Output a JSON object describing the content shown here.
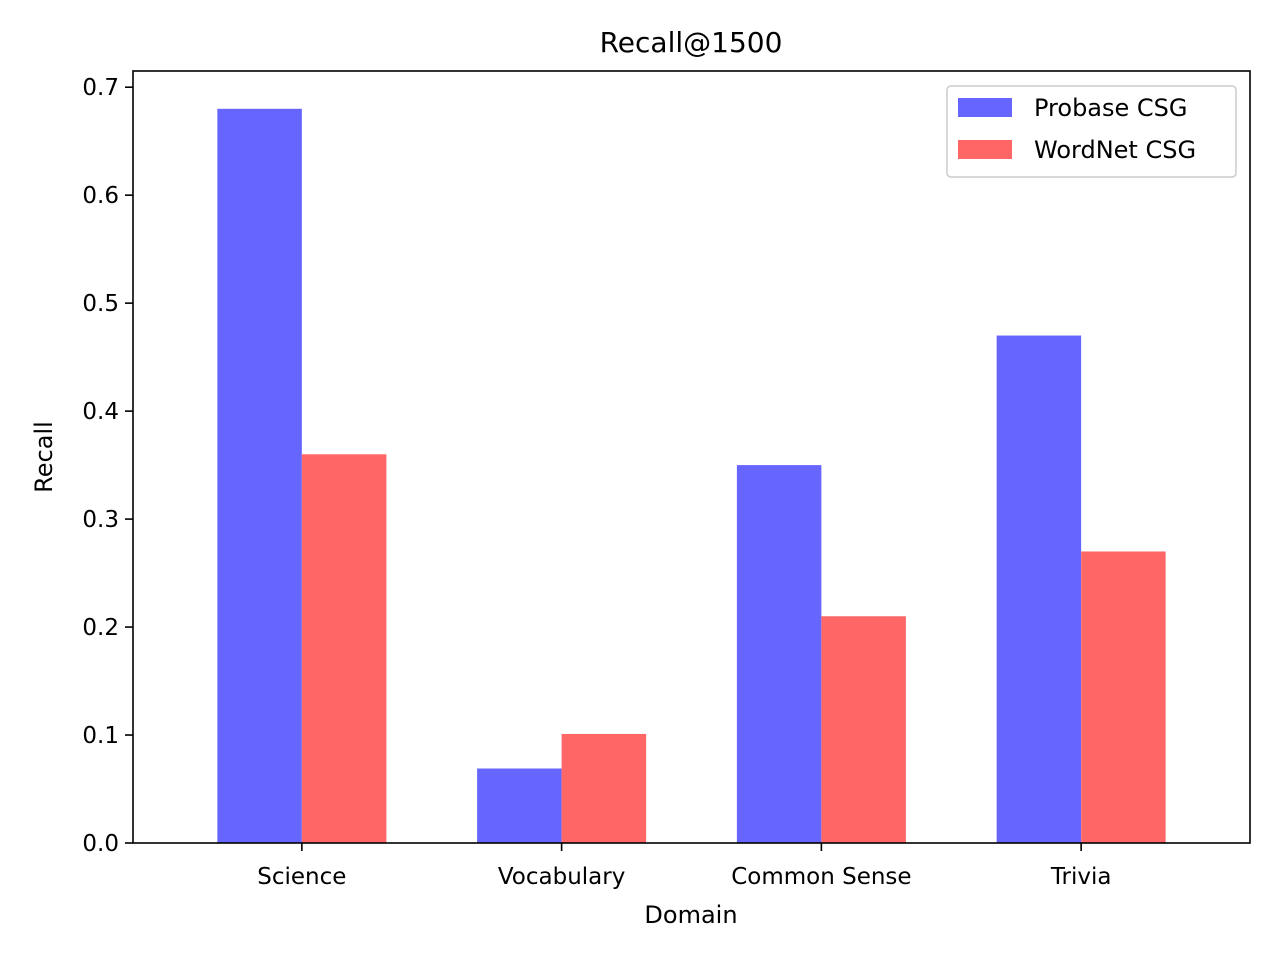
{
  "chart_data": {
    "type": "bar",
    "title": "Recall@1500",
    "xlabel": "Domain",
    "ylabel": "Recall",
    "categories": [
      "Science",
      "Vocabulary",
      "Common Sense",
      "Trivia"
    ],
    "series": [
      {
        "name": "Probase CSG",
        "values": [
          0.68,
          0.069,
          0.35,
          0.47
        ],
        "color": "#6666ff"
      },
      {
        "name": "WordNet CSG",
        "values": [
          0.36,
          0.101,
          0.21,
          0.27
        ],
        "color": "#ff6666"
      }
    ],
    "ylim": [
      0,
      0.715
    ],
    "yticks": [
      "0.0",
      "0.1",
      "0.2",
      "0.3",
      "0.4",
      "0.5",
      "0.6",
      "0.7"
    ],
    "grid": false,
    "legend_position": "top-right"
  }
}
